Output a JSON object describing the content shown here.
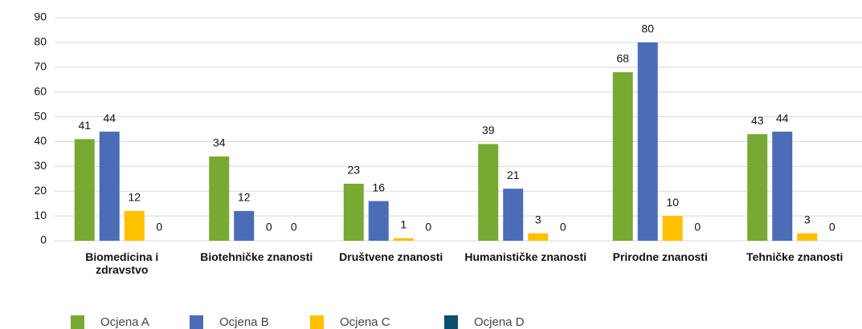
{
  "chart_data": {
    "type": "bar",
    "categories": [
      "Biomedicina i zdravstvo",
      "Biotehničke znanosti",
      "Društvene znanosti",
      "Humanističke znanosti",
      "Prirodne znanosti",
      "Tehničke znanosti"
    ],
    "series": [
      {
        "name": "Ocjena A",
        "color": "#77a933",
        "values": [
          41,
          34,
          23,
          39,
          68,
          43
        ]
      },
      {
        "name": "Ocjena B",
        "color": "#4b6cb7",
        "values": [
          44,
          12,
          16,
          21,
          80,
          44
        ]
      },
      {
        "name": "Ocjena C",
        "color": "#ffc000",
        "values": [
          12,
          0,
          1,
          3,
          10,
          3
        ]
      },
      {
        "name": "Ocjena D",
        "color": "#0d4f6e",
        "values": [
          0,
          0,
          0,
          0,
          0,
          0
        ]
      }
    ],
    "ylim": [
      0,
      90
    ],
    "yticks": [
      0,
      10,
      20,
      30,
      40,
      50,
      60,
      70,
      80,
      90
    ],
    "grid": true,
    "legend": "bottom"
  }
}
